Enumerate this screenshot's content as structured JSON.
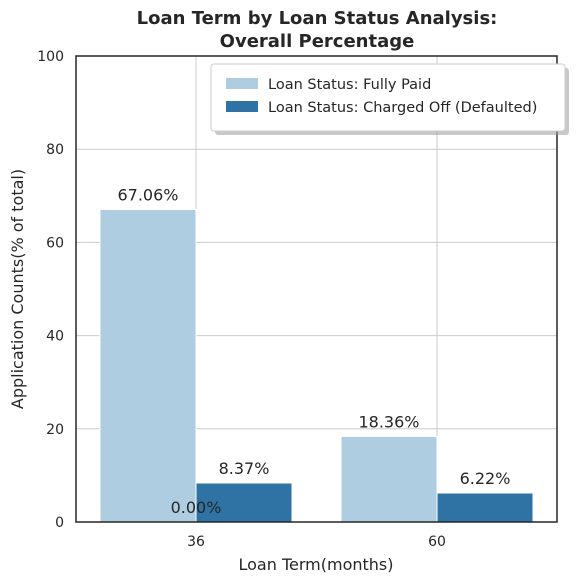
{
  "chart_data": {
    "type": "bar",
    "title_line1": "Loan Term by Loan Status Analysis:",
    "title_line2": "Overall Percentage",
    "xlabel": "Loan Term(months)",
    "ylabel": "Application Counts(% of total)",
    "categories": [
      "36",
      "60"
    ],
    "ylim": [
      0,
      100
    ],
    "yticks": [
      0,
      20,
      40,
      60,
      80,
      100
    ],
    "grid": true,
    "legend_position": "top-right",
    "series": [
      {
        "name": "Loan Status: Fully Paid",
        "color": "#aecde0",
        "values": [
          67.06,
          18.36
        ]
      },
      {
        "name": "Loan Status: Charged Off (Defaulted)",
        "color": "#2e73a3",
        "values": [
          8.37,
          6.22
        ]
      }
    ],
    "data_labels": [
      "67.06%",
      "18.36%",
      "8.37%",
      "6.22%"
    ],
    "annotation": "0.00%"
  }
}
